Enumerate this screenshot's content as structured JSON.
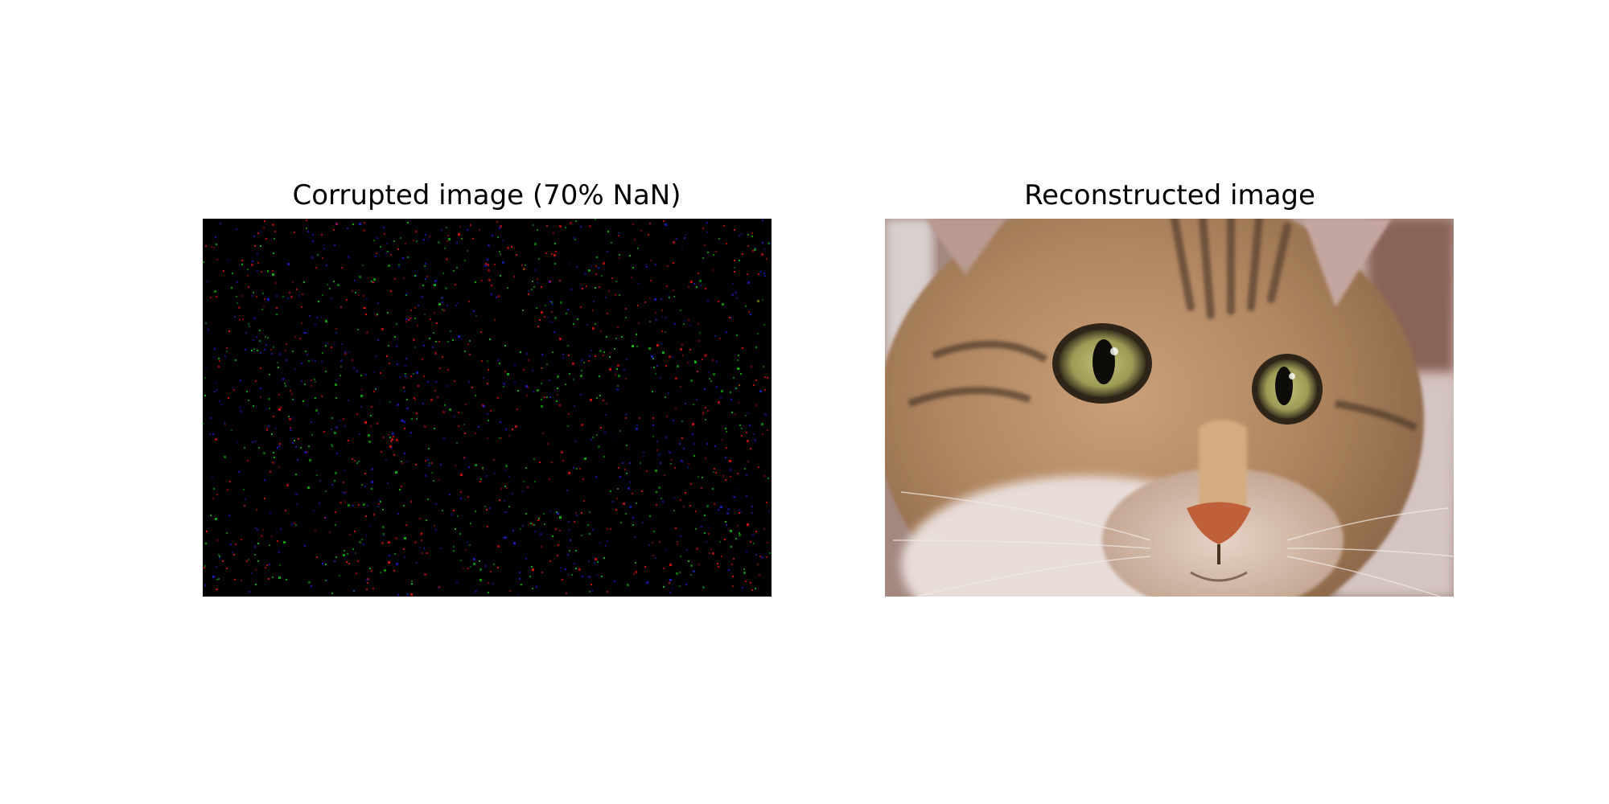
{
  "figure": {
    "left_panel": {
      "title": "Corrupted image (70% NaN)",
      "description_icon": "corrupted-noise-image"
    },
    "right_panel": {
      "title": "Reconstructed image",
      "description_icon": "cat-face-photo"
    }
  },
  "colors": {
    "background": "#ffffff",
    "corrupted_bg": "#000000",
    "noise_red": "#d01010",
    "noise_green": "#10b010",
    "noise_blue": "#1a1ab0",
    "fur_base": "#b08a6a",
    "fur_dark": "#5a4230",
    "eye_iris": "#9a9a52",
    "nose": "#c0603a"
  }
}
